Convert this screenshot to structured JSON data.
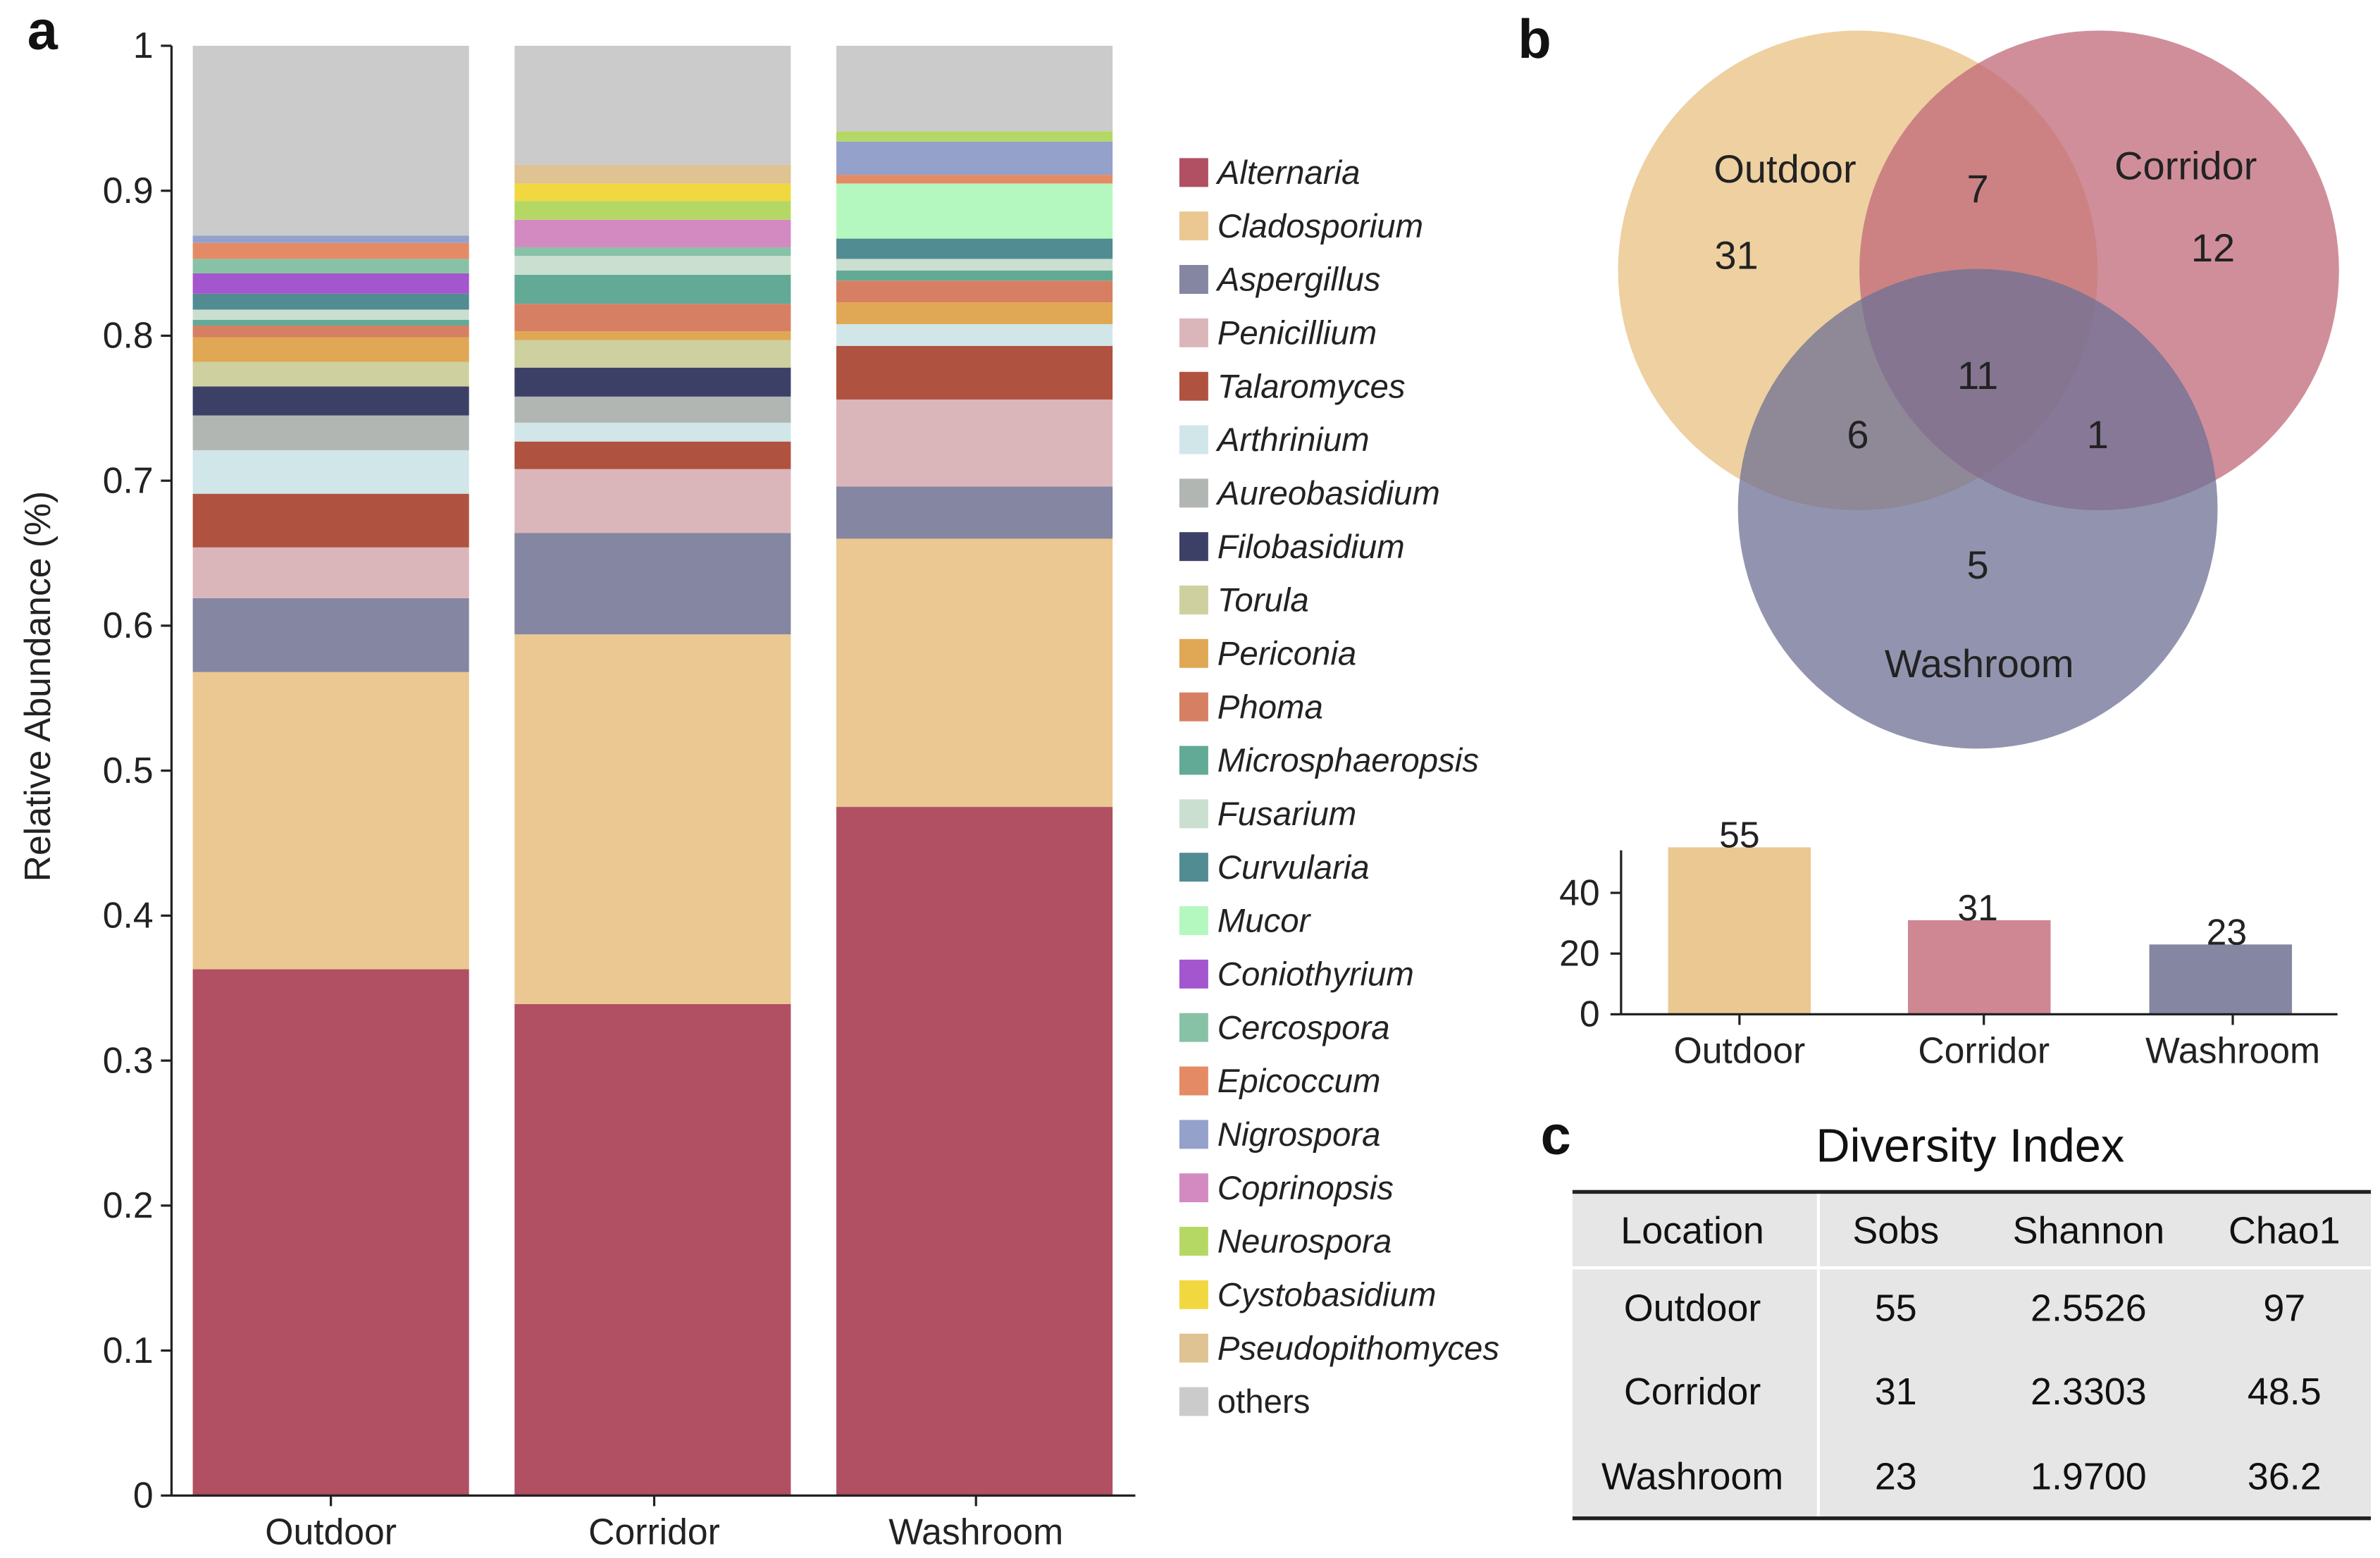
{
  "panels": {
    "a": "a",
    "b": "b",
    "c": "c"
  },
  "chart_data": [
    {
      "type": "bar",
      "stacked": true,
      "title": "",
      "xlabel": "",
      "ylabel": "Relative Abundance (%)",
      "ylim": [
        0,
        1
      ],
      "yticks": [
        "0",
        "0.1",
        "0.2",
        "0.3",
        "0.4",
        "0.5",
        "0.6",
        "0.7",
        "0.8",
        "0.9",
        "1"
      ],
      "categories": [
        "Outdoor",
        "Corridor",
        "Washroom"
      ],
      "legend_position": "right",
      "series": [
        {
          "name": "Alternaria",
          "color": "#b05062",
          "values": [
            0.363,
            0.339,
            0.475
          ]
        },
        {
          "name": "Cladosporium",
          "color": "#ebc891",
          "values": [
            0.205,
            0.255,
            0.185
          ]
        },
        {
          "name": "Aspergillus",
          "color": "#8586a1",
          "values": [
            0.051,
            0.07,
            0.036
          ]
        },
        {
          "name": "Penicillium",
          "color": "#dab6ba",
          "values": [
            0.035,
            0.044,
            0.06
          ]
        },
        {
          "name": "Talaromyces",
          "color": "#b05240",
          "values": [
            0.037,
            0.019,
            0.037
          ]
        },
        {
          "name": "Arthrinium",
          "color": "#d1e6e8",
          "values": [
            0.03,
            0.013,
            0.015
          ]
        },
        {
          "name": "Aureobasidium",
          "color": "#b2b6b3",
          "values": [
            0.024,
            0.018,
            0
          ]
        },
        {
          "name": "Filobasidium",
          "color": "#3d4066",
          "values": [
            0.02,
            0.02,
            0
          ]
        },
        {
          "name": "Torula",
          "color": "#ced09f",
          "values": [
            0.017,
            0.019,
            0
          ]
        },
        {
          "name": "Periconia",
          "color": "#e0a754",
          "values": [
            0.017,
            0.006,
            0.015
          ]
        },
        {
          "name": "Phoma",
          "color": "#d77f62",
          "values": [
            0.008,
            0.019,
            0.015
          ]
        },
        {
          "name": "Microsphaeropsis",
          "color": "#62aa96",
          "values": [
            0.004,
            0.02,
            0.007
          ]
        },
        {
          "name": "Fusarium",
          "color": "#cadfd0",
          "values": [
            0.007,
            0.013,
            0.008
          ]
        },
        {
          "name": "Curvularia",
          "color": "#518c92",
          "values": [
            0.011,
            0,
            0.014
          ]
        },
        {
          "name": "Mucor",
          "color": "#b5f8bf",
          "values": [
            0,
            0,
            0.038
          ]
        },
        {
          "name": "Coniothyrium",
          "color": "#a356cd",
          "values": [
            0.014,
            0,
            0
          ]
        },
        {
          "name": "Cercospora",
          "color": "#88c2a6",
          "values": [
            0.01,
            0.006,
            0
          ]
        },
        {
          "name": "Epicoccum",
          "color": "#e48b65",
          "values": [
            0.011,
            0,
            0.006
          ]
        },
        {
          "name": "Nigrospora",
          "color": "#93a1cb",
          "values": [
            0.005,
            0,
            0.023
          ]
        },
        {
          "name": "Coprinopsis",
          "color": "#d28ac1",
          "values": [
            0,
            0.019,
            0
          ]
        },
        {
          "name": "Neurospora",
          "color": "#b5d865",
          "values": [
            0,
            0.013,
            0.007
          ]
        },
        {
          "name": "Cystobasidium",
          "color": "#f2d840",
          "values": [
            0,
            0.012,
            0
          ]
        },
        {
          "name": "Pseudopithomyces",
          "color": "#dfc393",
          "values": [
            0,
            0.013,
            0
          ]
        },
        {
          "name": "others",
          "color": "#cbcbcb",
          "values": [
            0.131,
            0.082,
            0.059
          ]
        }
      ]
    },
    {
      "type": "venn",
      "sets": [
        {
          "name": "Outdoor",
          "color": "#ebc891"
        },
        {
          "name": "Corridor",
          "color": "#c0687a"
        },
        {
          "name": "Washroom",
          "color": "#6e7094"
        }
      ],
      "regions": {
        "outdoor_only": "31",
        "corridor_only": "12",
        "washroom_only": "5",
        "outdoor_corridor": "7",
        "outdoor_washroom": "6",
        "corridor_washroom": "1",
        "all": "11"
      }
    },
    {
      "type": "bar",
      "categories": [
        "Outdoor",
        "Corridor",
        "Washroom"
      ],
      "values": [
        55,
        31,
        23
      ],
      "data_labels": [
        "55",
        "31",
        "23"
      ],
      "colors": [
        "#ebc891",
        "#cf8793",
        "#8586a1"
      ],
      "yticks": [
        "0",
        "20",
        "40"
      ],
      "ylim": [
        0,
        55
      ]
    },
    {
      "type": "table",
      "title": "Diversity Index",
      "columns": [
        "Location",
        "Sobs",
        "Shannon",
        "Chao1"
      ],
      "rows": [
        [
          "Outdoor",
          "55",
          "2.5526",
          "97"
        ],
        [
          "Corridor",
          "31",
          "2.3303",
          "48.5"
        ],
        [
          "Washroom",
          "23",
          "1.9700",
          "36.2"
        ]
      ]
    }
  ]
}
